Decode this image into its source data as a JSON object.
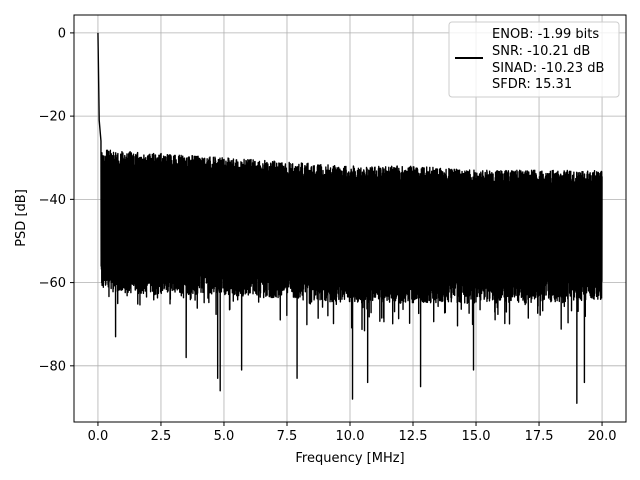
{
  "chart_data": {
    "type": "line",
    "xlabel": "Frequency [MHz]",
    "ylabel": "PSD [dB]",
    "xlim": [
      -0.95,
      20.95
    ],
    "ylim": [
      -93.5,
      4.3
    ],
    "xticks": [
      0.0,
      2.5,
      5.0,
      7.5,
      10.0,
      12.5,
      15.0,
      17.5,
      20.0
    ],
    "xtick_labels": [
      "0.0",
      "2.5",
      "5.0",
      "7.5",
      "10.0",
      "12.5",
      "15.0",
      "17.5",
      "20.0"
    ],
    "yticks": [
      0,
      -20,
      -40,
      -60,
      -80
    ],
    "ytick_labels": [
      "0",
      "−20",
      "−40",
      "−60",
      "−80"
    ],
    "grid": true,
    "legend_position": "top-right",
    "series": [
      {
        "color": "#000000",
        "noise_floor": {
          "x": [
            0.0,
            2.5,
            5.0,
            7.5,
            10.0,
            12.5,
            15.0,
            17.5,
            20.0
          ],
          "upper": [
            -28,
            -29,
            -30,
            -31,
            -32,
            -32,
            -33,
            -33,
            -33
          ],
          "lower": [
            -62,
            -63,
            -63,
            -64,
            -65,
            -65,
            -65,
            -65,
            -64
          ]
        },
        "peaks": [
          {
            "x": 0.0,
            "y": 0.0
          },
          {
            "x": 0.05,
            "y": -21
          },
          {
            "x": 0.12,
            "y": -26
          }
        ],
        "dips": [
          {
            "x": 0.7,
            "y": -73
          },
          {
            "x": 3.5,
            "y": -78
          },
          {
            "x": 4.75,
            "y": -83
          },
          {
            "x": 4.85,
            "y": -86
          },
          {
            "x": 5.7,
            "y": -81
          },
          {
            "x": 7.9,
            "y": -83
          },
          {
            "x": 10.1,
            "y": -88
          },
          {
            "x": 10.7,
            "y": -84
          },
          {
            "x": 12.8,
            "y": -85
          },
          {
            "x": 14.9,
            "y": -81
          },
          {
            "x": 19.0,
            "y": -89
          },
          {
            "x": 19.3,
            "y": -84
          }
        ]
      }
    ]
  },
  "legend": {
    "lines": [
      "ENOB: -1.99 bits",
      "SNR: -10.21 dB",
      "SINAD: -10.23 dB",
      "SFDR: 15.31"
    ]
  }
}
